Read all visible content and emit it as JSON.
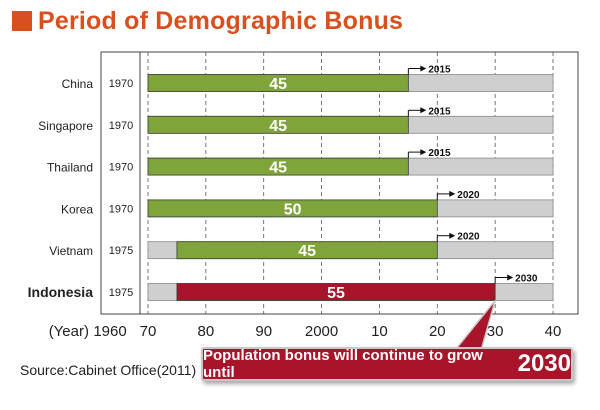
{
  "header": {
    "title": "Period of Demographic Bonus"
  },
  "source": "Source:Cabinet Office(2011)",
  "callout": {
    "text": "Population bonus will continue to grow until",
    "year": "2030"
  },
  "chart_data": {
    "type": "bar",
    "orientation": "horizontal-range",
    "title": "Period of Demographic Bonus",
    "x_axis_prefix": "(Year)",
    "x_ticks": [
      {
        "value": 1960,
        "label": "1960"
      },
      {
        "value": 1970,
        "label": "70"
      },
      {
        "value": 1980,
        "label": "80"
      },
      {
        "value": 1990,
        "label": "90"
      },
      {
        "value": 2000,
        "label": "2000"
      },
      {
        "value": 2010,
        "label": "10"
      },
      {
        "value": 2020,
        "label": "20"
      },
      {
        "value": 2030,
        "label": "30"
      },
      {
        "value": 2040,
        "label": "40"
      }
    ],
    "xlim": [
      1960,
      2040
    ],
    "background_range": [
      1970,
      2040
    ],
    "grid": "vertical dashed",
    "rows": [
      {
        "country": "China",
        "start_label": "1970",
        "start": 1970,
        "end": 2015,
        "duration": "45",
        "end_label": "2015",
        "highlight": false
      },
      {
        "country": "Singapore",
        "start_label": "1970",
        "start": 1970,
        "end": 2015,
        "duration": "45",
        "end_label": "2015",
        "highlight": false
      },
      {
        "country": "Thailand",
        "start_label": "1970",
        "start": 1970,
        "end": 2015,
        "duration": "45",
        "end_label": "2015",
        "highlight": false
      },
      {
        "country": "Korea",
        "start_label": "1970",
        "start": 1970,
        "end": 2020,
        "duration": "50",
        "end_label": "2020",
        "highlight": false
      },
      {
        "country": "Vietnam",
        "start_label": "1975",
        "start": 1975,
        "end": 2020,
        "duration": "45",
        "end_label": "2020",
        "highlight": false
      },
      {
        "country": "Indonesia",
        "start_label": "1975",
        "start": 1975,
        "end": 2030,
        "duration": "55",
        "end_label": "2030",
        "highlight": true
      }
    ],
    "colors": {
      "bonus": "#7fa53a",
      "bonus_highlight": "#a8142a",
      "background": "#cfcfcf",
      "title": "#d94f1e"
    }
  }
}
